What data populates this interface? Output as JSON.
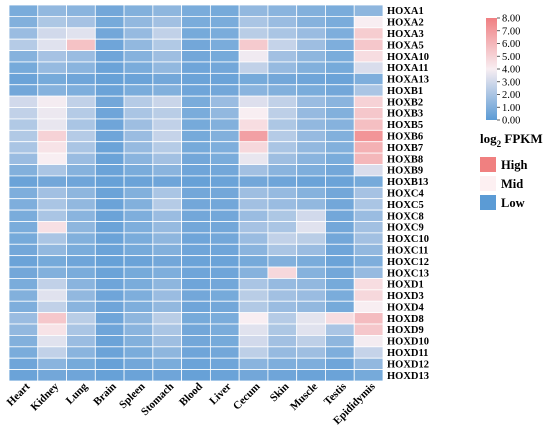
{
  "chart_data": {
    "type": "heatmap",
    "columns": [
      "Heart",
      "Kidney",
      "Lung",
      "Brain",
      "Spleen",
      "Stomach",
      "Blood",
      "Liver",
      "Cecum",
      "Skin",
      "Muscle",
      "Testis",
      "Epididymis"
    ],
    "rows": [
      "HOXA1",
      "HOXA2",
      "HOXA3",
      "HOXA5",
      "HOXA10",
      "HOXA11",
      "HOXA13",
      "HOXB1",
      "HOXB2",
      "HOXB3",
      "HOXB5",
      "HOXB6",
      "HOXB7",
      "HOXB8",
      "HOXB9",
      "HOXB13",
      "HOXC4",
      "HOXC5",
      "HOXC8",
      "HOXC9",
      "HOXC10",
      "HOXC11",
      "HOXC12",
      "HOXC13",
      "HOXD1",
      "HOXD3",
      "HOXD4",
      "HOXD8",
      "HOXD9",
      "HOXD10",
      "HOXD11",
      "HOXD12",
      "HOXD13"
    ],
    "values": [
      [
        0.8,
        1.4,
        1.2,
        0.6,
        1.0,
        1.3,
        0.8,
        0.7,
        1.4,
        1.2,
        1.0,
        0.8,
        1.3
      ],
      [
        1.0,
        2.1,
        1.9,
        0.7,
        1.4,
        1.8,
        0.8,
        0.8,
        2.0,
        1.6,
        1.1,
        0.8,
        4.0
      ],
      [
        1.6,
        3.0,
        3.4,
        0.6,
        1.5,
        2.6,
        0.7,
        0.8,
        2.4,
        2.0,
        1.6,
        0.9,
        5.2
      ],
      [
        2.3,
        3.4,
        5.6,
        0.5,
        1.4,
        2.2,
        0.6,
        0.8,
        5.3,
        2.7,
        1.7,
        0.9,
        5.4
      ],
      [
        1.1,
        1.9,
        1.6,
        0.5,
        1.1,
        1.7,
        0.6,
        0.7,
        3.8,
        1.8,
        1.3,
        0.8,
        4.6
      ],
      [
        0.7,
        1.5,
        1.2,
        0.4,
        0.8,
        1.4,
        0.5,
        0.6,
        2.6,
        1.5,
        1.0,
        0.7,
        3.2
      ],
      [
        0.4,
        0.7,
        0.5,
        0.3,
        0.4,
        0.6,
        0.4,
        0.4,
        0.7,
        0.6,
        0.5,
        0.4,
        0.9
      ],
      [
        0.6,
        1.1,
        0.9,
        0.4,
        0.8,
        1.0,
        0.5,
        0.6,
        1.2,
        1.0,
        0.8,
        0.6,
        2.0
      ],
      [
        3.0,
        3.9,
        2.6,
        0.6,
        2.3,
        2.8,
        0.8,
        1.6,
        3.3,
        2.6,
        1.6,
        1.2,
        5.0
      ],
      [
        2.6,
        3.7,
        2.3,
        0.5,
        2.0,
        2.4,
        0.8,
        1.4,
        4.0,
        2.5,
        1.5,
        1.0,
        5.4
      ],
      [
        2.2,
        3.6,
        2.0,
        0.5,
        1.7,
        2.6,
        0.7,
        1.0,
        4.6,
        2.1,
        1.4,
        1.1,
        5.7
      ],
      [
        2.2,
        5.0,
        2.3,
        0.5,
        1.6,
        2.7,
        0.7,
        1.0,
        6.8,
        2.3,
        1.5,
        1.0,
        7.2
      ],
      [
        2.0,
        4.4,
        2.0,
        0.4,
        1.5,
        2.3,
        0.7,
        0.9,
        4.8,
        2.0,
        1.4,
        1.0,
        6.2
      ],
      [
        1.6,
        4.0,
        1.6,
        0.4,
        1.2,
        1.8,
        0.6,
        0.8,
        3.6,
        1.7,
        1.2,
        0.8,
        6.0
      ],
      [
        1.0,
        2.0,
        1.1,
        0.4,
        0.8,
        1.2,
        0.5,
        0.6,
        1.8,
        1.2,
        0.9,
        0.6,
        3.2
      ],
      [
        0.4,
        0.6,
        0.5,
        0.3,
        0.4,
        0.5,
        0.3,
        0.4,
        0.6,
        0.5,
        0.4,
        0.4,
        0.7
      ],
      [
        0.9,
        1.8,
        1.3,
        0.4,
        1.0,
        2.0,
        0.6,
        0.6,
        1.7,
        1.5,
        1.1,
        0.6,
        1.9
      ],
      [
        0.9,
        2.0,
        1.4,
        0.4,
        1.0,
        2.3,
        0.6,
        0.6,
        1.8,
        1.6,
        1.4,
        0.6,
        2.0
      ],
      [
        0.8,
        2.0,
        1.2,
        0.4,
        0.9,
        1.6,
        0.6,
        0.6,
        1.6,
        2.1,
        3.0,
        0.6,
        1.6
      ],
      [
        0.8,
        4.5,
        1.3,
        0.4,
        0.9,
        1.5,
        0.6,
        0.6,
        1.9,
        2.0,
        3.4,
        0.6,
        1.8
      ],
      [
        0.7,
        2.0,
        1.0,
        0.4,
        0.8,
        1.3,
        0.5,
        0.6,
        1.6,
        2.6,
        2.4,
        0.6,
        1.8
      ],
      [
        0.6,
        1.4,
        0.8,
        0.4,
        0.7,
        1.0,
        0.5,
        0.5,
        1.2,
        2.0,
        1.6,
        0.5,
        1.4
      ],
      [
        0.4,
        0.7,
        0.5,
        0.3,
        0.4,
        0.6,
        0.4,
        0.4,
        0.7,
        1.0,
        0.8,
        0.4,
        0.9
      ],
      [
        0.6,
        1.0,
        0.8,
        0.4,
        0.7,
        0.9,
        0.5,
        0.5,
        1.1,
        4.8,
        1.1,
        0.6,
        1.5
      ],
      [
        0.8,
        2.6,
        1.2,
        0.5,
        0.8,
        1.3,
        0.5,
        0.6,
        2.0,
        1.5,
        1.4,
        0.7,
        4.6
      ],
      [
        1.0,
        3.4,
        1.4,
        0.5,
        0.9,
        1.6,
        0.6,
        0.7,
        2.4,
        1.8,
        1.6,
        0.8,
        4.8
      ],
      [
        0.9,
        2.6,
        1.2,
        0.5,
        0.9,
        1.4,
        0.5,
        0.6,
        2.2,
        1.6,
        1.4,
        0.7,
        4.0
      ],
      [
        1.6,
        5.4,
        2.4,
        0.5,
        1.3,
        2.4,
        0.7,
        0.8,
        4.0,
        2.3,
        3.5,
        4.6,
        5.8
      ],
      [
        1.4,
        4.4,
        2.0,
        0.5,
        1.2,
        2.0,
        0.6,
        0.8,
        3.4,
        2.1,
        3.4,
        2.0,
        5.4
      ],
      [
        1.0,
        3.4,
        1.6,
        0.4,
        1.0,
        1.7,
        0.6,
        0.7,
        3.0,
        1.8,
        2.5,
        1.3,
        3.9
      ],
      [
        0.8,
        2.6,
        1.2,
        0.4,
        0.8,
        1.3,
        0.5,
        0.6,
        2.5,
        1.5,
        1.7,
        0.9,
        2.7
      ],
      [
        0.5,
        1.2,
        0.7,
        0.3,
        0.6,
        0.8,
        0.4,
        0.5,
        1.2,
        0.9,
        0.9,
        0.5,
        1.4
      ],
      [
        0.4,
        0.6,
        0.5,
        0.3,
        0.4,
        0.5,
        0.3,
        0.4,
        0.6,
        0.5,
        0.4,
        0.4,
        0.7
      ]
    ],
    "colorbar": {
      "min": 0,
      "max": 8,
      "ticks": [
        "0.00",
        "1.00",
        "2.00",
        "3.00",
        "4.00",
        "5.00",
        "6.00",
        "7.00",
        "8.00"
      ],
      "colors": [
        "#5b9bd5",
        "#f8eef2",
        "#f07f82"
      ]
    },
    "colorbar_label": {
      "main": "log",
      "sub": "2",
      "rest": " FPKM"
    },
    "legend": [
      {
        "label": "High",
        "color": "#f08080"
      },
      {
        "label": "Mid",
        "color": "#fdf0f2"
      },
      {
        "label": "Low",
        "color": "#5b9bd5"
      }
    ],
    "legend_placement": "right"
  }
}
